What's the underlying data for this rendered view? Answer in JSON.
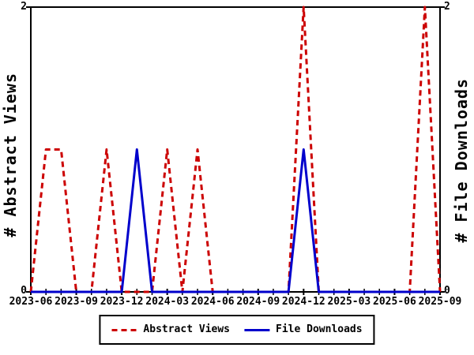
{
  "chart_data": {
    "type": "line",
    "x": [
      "2023-06",
      "2023-07",
      "2023-08",
      "2023-09",
      "2023-10",
      "2023-11",
      "2023-12",
      "2024-01",
      "2024-02",
      "2024-03",
      "2024-04",
      "2024-05",
      "2024-06",
      "2024-07",
      "2024-08",
      "2024-09",
      "2024-10",
      "2024-11",
      "2024-12",
      "2025-01",
      "2025-02",
      "2025-03",
      "2025-04",
      "2025-05",
      "2025-06",
      "2025-07",
      "2025-08",
      "2025-09"
    ],
    "series": [
      {
        "name": "Abstract Views",
        "color": "#CC0000",
        "style": "dashed",
        "axis": "left",
        "values": [
          0,
          1,
          1,
          0,
          0,
          1,
          0,
          0,
          0,
          1,
          0,
          1,
          0,
          0,
          0,
          0,
          0,
          0,
          2,
          0,
          0,
          0,
          0,
          0,
          0,
          0,
          2,
          0
        ]
      },
      {
        "name": "File Downloads",
        "color": "#0000CC",
        "style": "solid",
        "axis": "right",
        "values": [
          0,
          0,
          0,
          0,
          0,
          0,
          0,
          1,
          0,
          0,
          0,
          0,
          0,
          0,
          0,
          0,
          0,
          0,
          1,
          0,
          0,
          0,
          0,
          0,
          0,
          0,
          0,
          0
        ]
      }
    ],
    "ylabel_left": "# Abstract Views",
    "ylabel_right": "# File Downloads",
    "ylim": [
      0,
      2
    ],
    "y_tick_labels": [
      "0",
      "2"
    ],
    "x_tick_labels": [
      "2023-06",
      "2023-09",
      "2023-12",
      "2024-03",
      "2024-06",
      "2024-09",
      "2024-12",
      "2025-03",
      "2025-06",
      "2025-09"
    ],
    "grid": false,
    "legend_position": "bottom"
  },
  "colors": {
    "abstract_views": "#CC0000",
    "file_downloads": "#0000CC",
    "axis": "#000000",
    "background": "#FFFFFF"
  }
}
